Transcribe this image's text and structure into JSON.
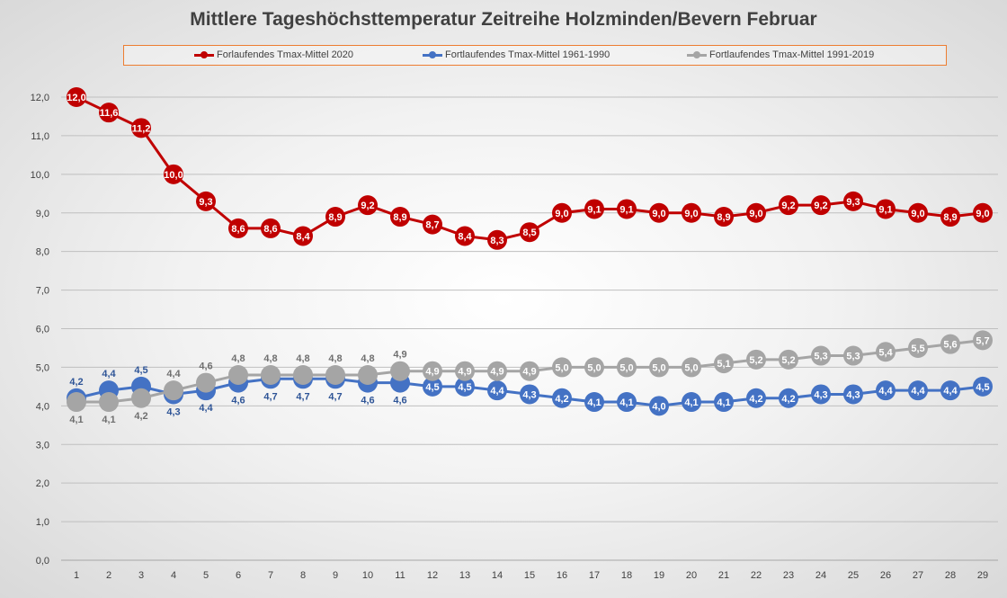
{
  "chart_data": {
    "type": "line",
    "title": "Mittlere Tageshöchsttemperatur Zeitreihe Holzminden/Bevern Februar",
    "xlabel": "",
    "ylabel": "",
    "x": [
      1,
      2,
      3,
      4,
      5,
      6,
      7,
      8,
      9,
      10,
      11,
      12,
      13,
      14,
      15,
      16,
      17,
      18,
      19,
      20,
      21,
      22,
      23,
      24,
      25,
      26,
      27,
      28,
      29
    ],
    "ylim": [
      0,
      12
    ],
    "yticks": [
      "0,0",
      "1,0",
      "2,0",
      "3,0",
      "4,0",
      "5,0",
      "6,0",
      "7,0",
      "8,0",
      "9,0",
      "10,0",
      "11,0",
      "12,0"
    ],
    "grid": true,
    "legend_position": "top",
    "series": [
      {
        "name": "Forlaufendes Tmax-Mittel 2020",
        "color": "#c00000",
        "values": [
          12.0,
          11.6,
          11.2,
          10.0,
          9.3,
          8.6,
          8.6,
          8.4,
          8.9,
          9.2,
          8.9,
          8.7,
          8.4,
          8.3,
          8.5,
          9.0,
          9.1,
          9.1,
          9.0,
          9.0,
          8.9,
          9.0,
          9.2,
          9.2,
          9.3,
          9.1,
          9.0,
          8.9,
          9.0
        ]
      },
      {
        "name": "Fortlaufendes Tmax-Mittel 1961-1990",
        "color": "#4472c4",
        "values": [
          4.2,
          4.4,
          4.5,
          4.3,
          4.4,
          4.6,
          4.7,
          4.7,
          4.7,
          4.6,
          4.6,
          4.5,
          4.5,
          4.4,
          4.3,
          4.2,
          4.1,
          4.1,
          4.0,
          4.1,
          4.1,
          4.2,
          4.2,
          4.3,
          4.3,
          4.4,
          4.4,
          4.4,
          4.5
        ]
      },
      {
        "name": "Fortlaufendes Tmax-Mittel 1991-2019",
        "color": "#a5a5a5",
        "values": [
          4.1,
          4.1,
          4.2,
          4.4,
          4.6,
          4.8,
          4.8,
          4.8,
          4.8,
          4.8,
          4.9,
          4.9,
          4.9,
          4.9,
          4.9,
          5.0,
          5.0,
          5.0,
          5.0,
          5.0,
          5.1,
          5.2,
          5.2,
          5.3,
          5.3,
          5.4,
          5.5,
          5.6,
          5.7
        ]
      }
    ]
  }
}
